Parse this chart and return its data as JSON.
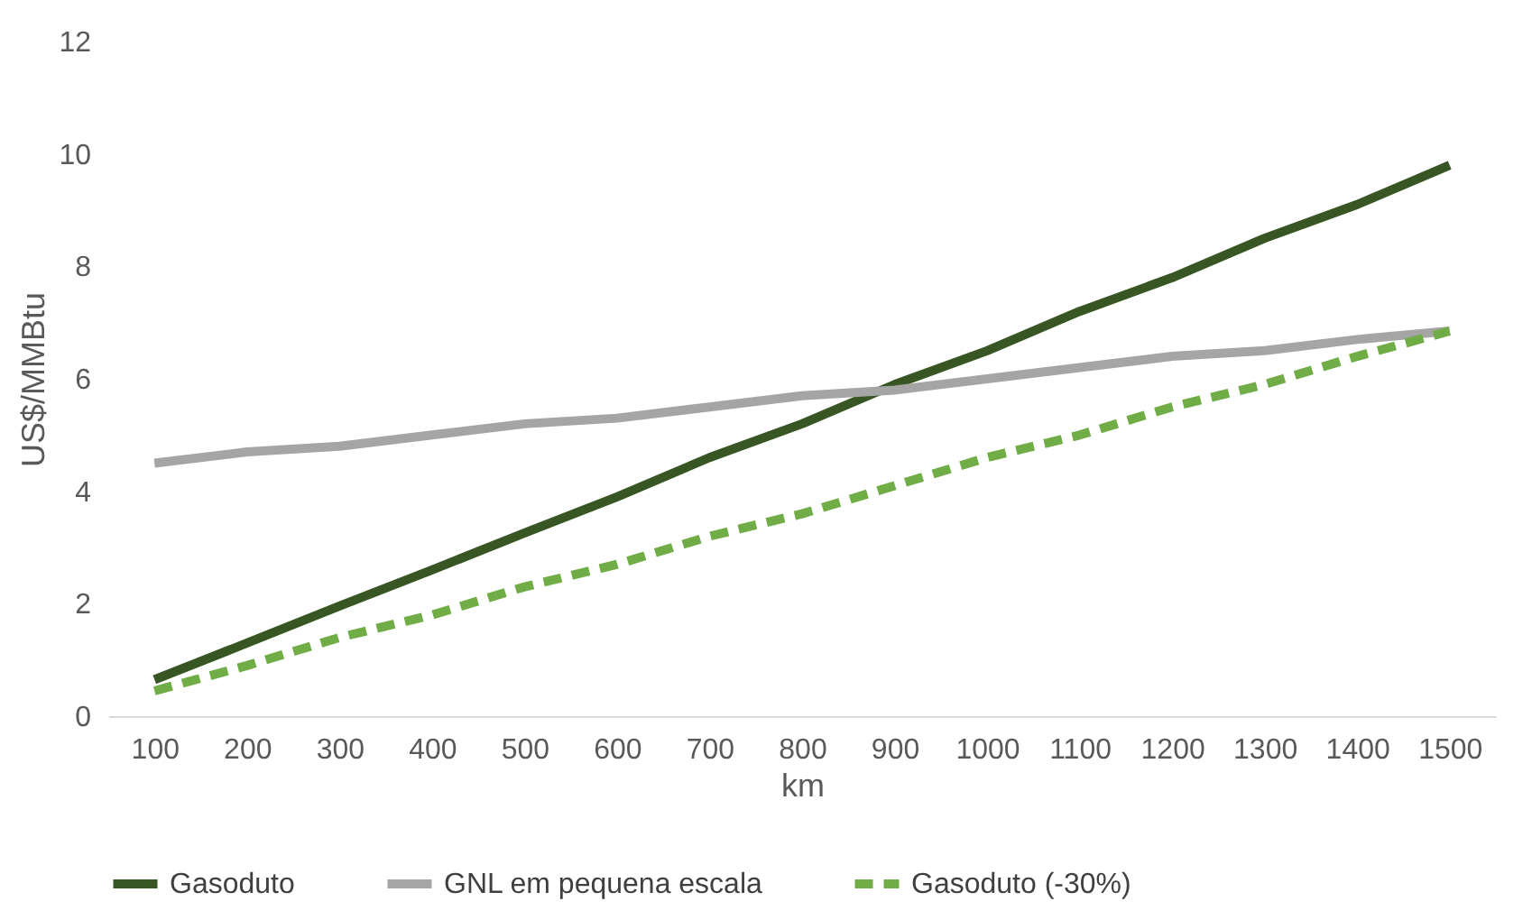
{
  "chart_data": {
    "type": "line",
    "xlabel": "km",
    "ylabel": "US$/MMBtu",
    "categories": [
      "100",
      "200",
      "300",
      "400",
      "500",
      "600",
      "700",
      "800",
      "900",
      "1000",
      "1100",
      "1200",
      "1300",
      "1400",
      "1500"
    ],
    "series": [
      {
        "name": "Gasoduto",
        "color": "#375623",
        "line_style": "solid",
        "values": [
          0.65,
          1.3,
          1.96,
          2.6,
          3.26,
          3.9,
          4.6,
          5.2,
          5.9,
          6.5,
          7.2,
          7.8,
          8.5,
          9.1,
          9.8
        ]
      },
      {
        "name": "GNL em pequena escala",
        "color": "#a5a5a5",
        "line_style": "solid",
        "values": [
          4.5,
          4.7,
          4.8,
          5.0,
          5.2,
          5.3,
          5.5,
          5.7,
          5.8,
          6.0,
          6.2,
          6.4,
          6.5,
          6.7,
          6.85
        ]
      },
      {
        "name": "Gasoduto (-30%)",
        "color": "#70ad47",
        "line_style": "dashed",
        "values": [
          0.45,
          0.9,
          1.4,
          1.8,
          2.3,
          2.7,
          3.2,
          3.6,
          4.1,
          4.6,
          5.0,
          5.5,
          5.9,
          6.4,
          6.85
        ]
      }
    ],
    "ylim": [
      0,
      12
    ],
    "yticks": [
      0,
      2,
      4,
      6,
      8,
      10,
      12
    ],
    "grid": false,
    "legend": "bottom",
    "marker": "none"
  }
}
